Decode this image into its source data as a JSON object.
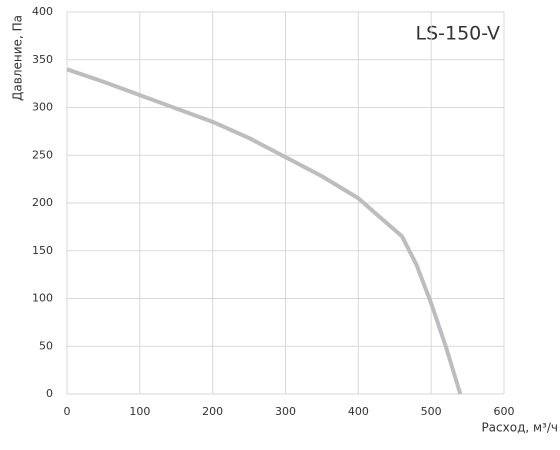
{
  "chart_data": {
    "type": "line",
    "title": "LS-150-V",
    "xlabel": "Расход, м³/ч",
    "ylabel": "Давление, Па",
    "x": [
      0,
      50,
      100,
      150,
      200,
      250,
      300,
      350,
      400,
      430,
      460,
      480,
      500,
      520,
      540
    ],
    "values": [
      340,
      327,
      313,
      299,
      285,
      268,
      248,
      228,
      205,
      185,
      165,
      135,
      95,
      50,
      0
    ],
    "color": "#bdbdc1",
    "xlim": [
      0,
      600
    ],
    "xticks": [
      0,
      100,
      200,
      300,
      400,
      500,
      600
    ],
    "ylim": [
      0,
      400
    ],
    "yticks": [
      0,
      50,
      100,
      150,
      200,
      250,
      300,
      350,
      400
    ],
    "grid": true
  }
}
